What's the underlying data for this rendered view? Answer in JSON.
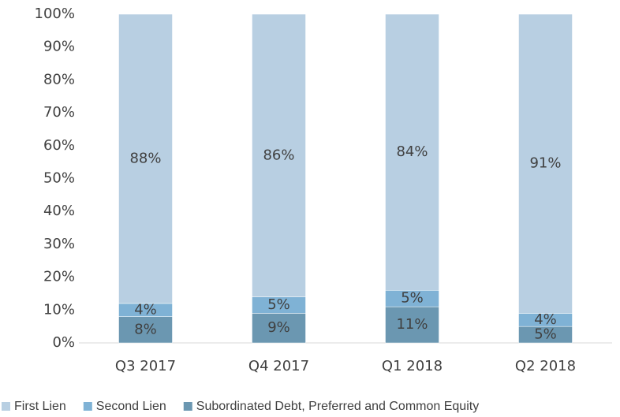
{
  "chart_data": {
    "type": "stacked_bar",
    "categories": [
      "Q3 2017",
      "Q4 2017",
      "Q1 2018",
      "Q2 2018"
    ],
    "series": [
      {
        "name": "Subordinated Debt, Preferred and Common Equity",
        "color": "#6b97b1",
        "values": [
          8,
          9,
          11,
          5
        ],
        "value_labels": [
          "8%",
          "9%",
          "11%",
          "5%"
        ]
      },
      {
        "name": "Second Lien",
        "color": "#7fb2d5",
        "values": [
          4,
          5,
          5,
          4
        ],
        "value_labels": [
          "4%",
          "5%",
          "5%",
          "4%"
        ]
      },
      {
        "name": "First Lien",
        "color": "#b8cfe2",
        "values": [
          88,
          86,
          84,
          91
        ],
        "value_labels": [
          "88%",
          "86%",
          "84%",
          "91%"
        ]
      }
    ],
    "legend_order": [
      "First Lien",
      "Second Lien",
      "Subordinated Debt, Preferred and Common Equity"
    ],
    "ylim": [
      0,
      100
    ],
    "yticks": [
      {
        "value": 0,
        "label": "0%"
      },
      {
        "value": 10,
        "label": "10%"
      },
      {
        "value": 20,
        "label": "20%"
      },
      {
        "value": 30,
        "label": "30%"
      },
      {
        "value": 40,
        "label": "40%"
      },
      {
        "value": 50,
        "label": "50%"
      },
      {
        "value": 60,
        "label": "60%"
      },
      {
        "value": 70,
        "label": "70%"
      },
      {
        "value": 80,
        "label": "80%"
      },
      {
        "value": 90,
        "label": "90%"
      },
      {
        "value": 100,
        "label": "100%"
      }
    ],
    "grid": false
  }
}
